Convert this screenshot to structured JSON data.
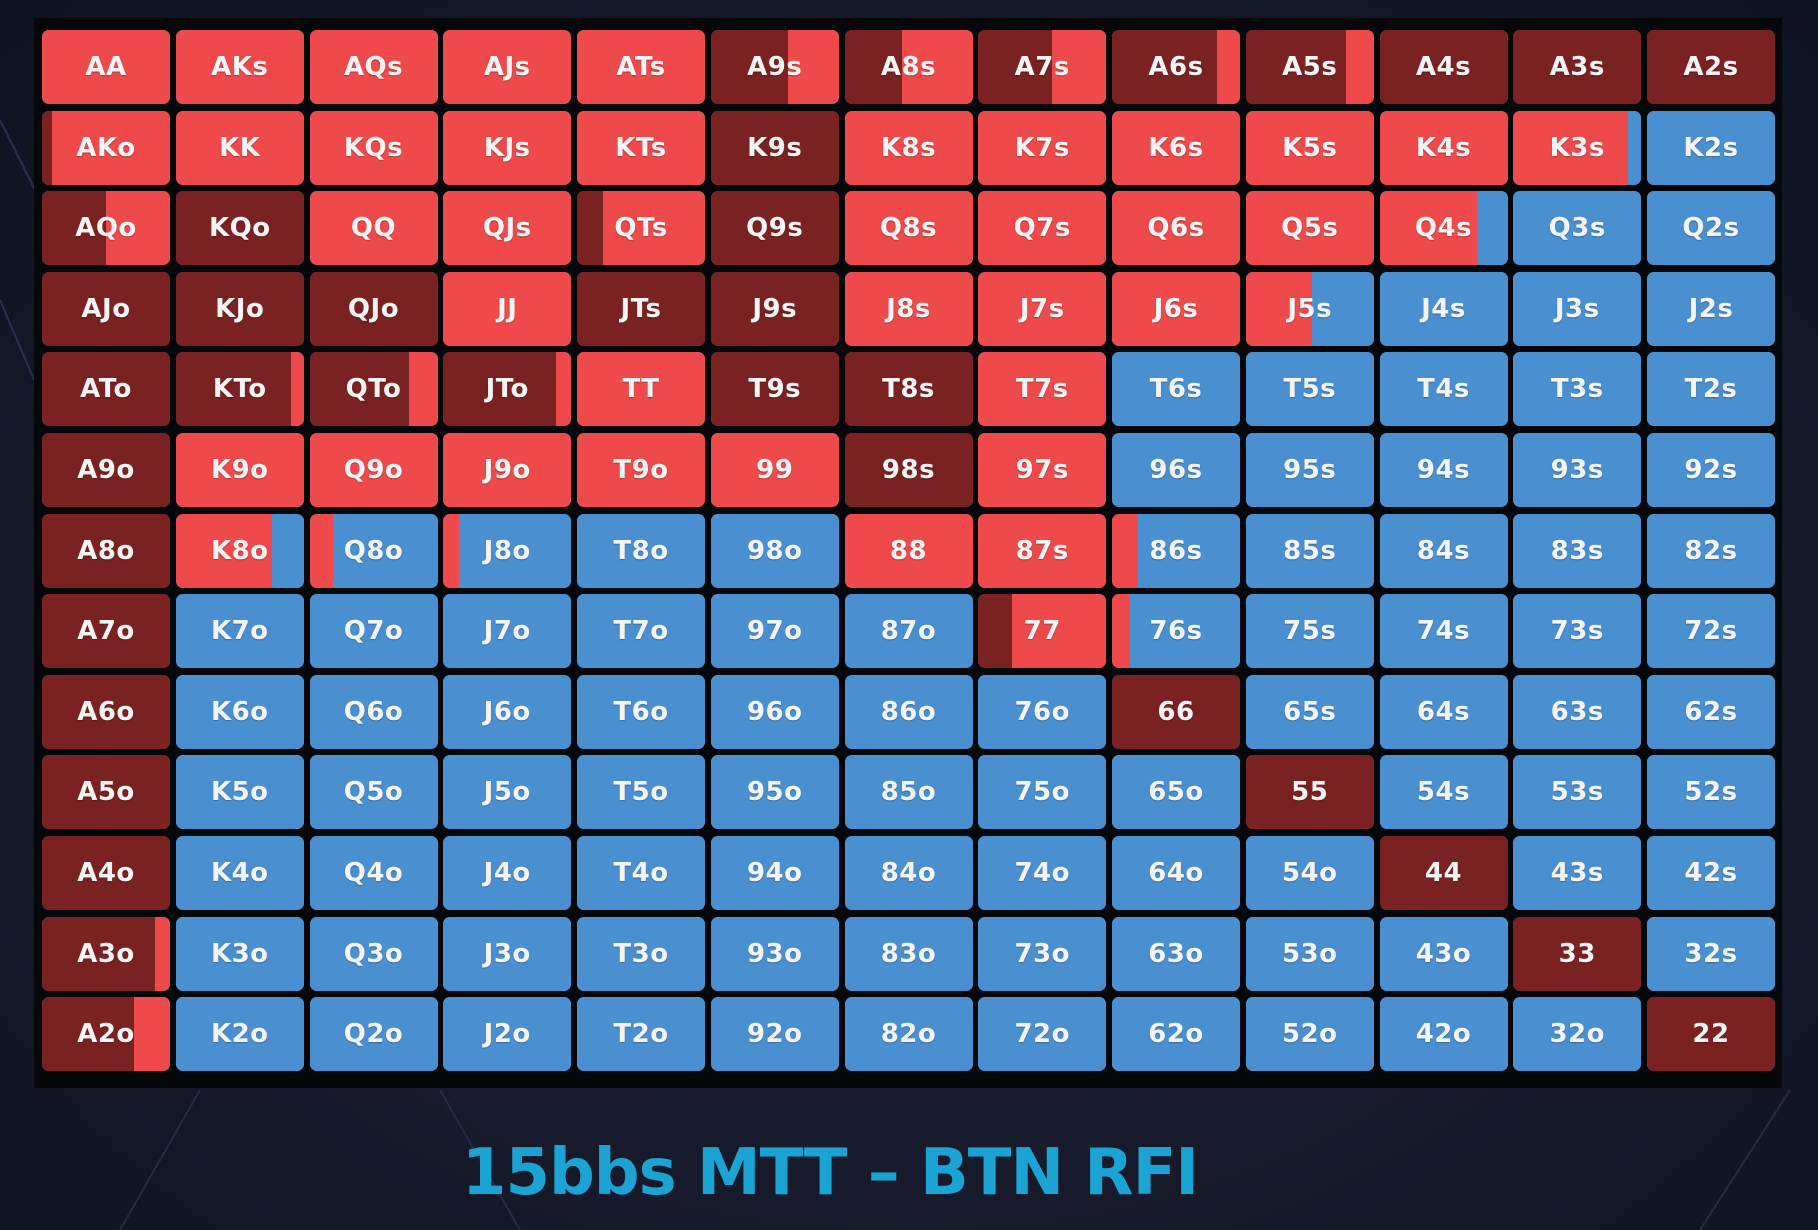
{
  "title": "15bbs MTT – BTN RFI",
  "colors": {
    "raise": "#ee4a4b",
    "allin": "#7a2222",
    "fold": "#4a8fd0",
    "text": "#f4f4f4",
    "title": "#1aa3d3"
  },
  "chart_data": {
    "type": "heatmap",
    "ranks": [
      "A",
      "K",
      "Q",
      "J",
      "T",
      "9",
      "8",
      "7",
      "6",
      "5",
      "4",
      "3",
      "2"
    ],
    "legend": [],
    "rows": [
      [
        "AA",
        "AKs",
        "AQs",
        "AJs",
        "ATs",
        "A9s",
        "A8s",
        "A7s",
        "A6s",
        "A5s",
        "A4s",
        "A3s",
        "A2s"
      ],
      [
        "AKo",
        "KK",
        "KQs",
        "KJs",
        "KTs",
        "K9s",
        "K8s",
        "K7s",
        "K6s",
        "K5s",
        "K4s",
        "K3s",
        "K2s"
      ],
      [
        "AQo",
        "KQo",
        "QQ",
        "QJs",
        "QTs",
        "Q9s",
        "Q8s",
        "Q7s",
        "Q6s",
        "Q5s",
        "Q4s",
        "Q3s",
        "Q2s"
      ],
      [
        "AJo",
        "KJo",
        "QJo",
        "JJ",
        "JTs",
        "J9s",
        "J8s",
        "J7s",
        "J6s",
        "J5s",
        "J4s",
        "J3s",
        "J2s"
      ],
      [
        "ATo",
        "KTo",
        "QTo",
        "JTo",
        "TT",
        "T9s",
        "T8s",
        "T7s",
        "T6s",
        "T5s",
        "T4s",
        "T3s",
        "T2s"
      ],
      [
        "A9o",
        "K9o",
        "Q9o",
        "J9o",
        "T9o",
        "99",
        "98s",
        "97s",
        "96s",
        "95s",
        "94s",
        "93s",
        "92s"
      ],
      [
        "A8o",
        "K8o",
        "Q8o",
        "J8o",
        "T8o",
        "98o",
        "88",
        "87s",
        "86s",
        "85s",
        "84s",
        "83s",
        "82s"
      ],
      [
        "A7o",
        "K7o",
        "Q7o",
        "J7o",
        "T7o",
        "97o",
        "87o",
        "77",
        "76s",
        "75s",
        "74s",
        "73s",
        "72s"
      ],
      [
        "A6o",
        "K6o",
        "Q6o",
        "J6o",
        "T6o",
        "96o",
        "86o",
        "76o",
        "66",
        "65s",
        "64s",
        "63s",
        "62s"
      ],
      [
        "A5o",
        "K5o",
        "Q5o",
        "J5o",
        "T5o",
        "95o",
        "85o",
        "75o",
        "65o",
        "55",
        "54s",
        "53s",
        "52s"
      ],
      [
        "A4o",
        "K4o",
        "Q4o",
        "J4o",
        "T4o",
        "94o",
        "84o",
        "74o",
        "64o",
        "54o",
        "44",
        "43s",
        "42s"
      ],
      [
        "A3o",
        "K3o",
        "Q3o",
        "J3o",
        "T3o",
        "93o",
        "83o",
        "73o",
        "63o",
        "53o",
        "43o",
        "33",
        "32s"
      ],
      [
        "A2o",
        "K2o",
        "Q2o",
        "J2o",
        "T2o",
        "92o",
        "82o",
        "72o",
        "62o",
        "52o",
        "42o",
        "32o",
        "22"
      ]
    ],
    "frequencies": [
      [
        {
          "allin": 0,
          "raise": 1,
          "fold": 0
        },
        {
          "allin": 0,
          "raise": 1,
          "fold": 0
        },
        {
          "allin": 0,
          "raise": 1,
          "fold": 0
        },
        {
          "allin": 0,
          "raise": 1,
          "fold": 0
        },
        {
          "allin": 0,
          "raise": 1,
          "fold": 0
        },
        {
          "allin": 0.6,
          "raise": 0.4,
          "fold": 0
        },
        {
          "allin": 0.45,
          "raise": 0.55,
          "fold": 0
        },
        {
          "allin": 0.58,
          "raise": 0.42,
          "fold": 0
        },
        {
          "allin": 0.82,
          "raise": 0.18,
          "fold": 0
        },
        {
          "allin": 0.78,
          "raise": 0.22,
          "fold": 0
        },
        {
          "allin": 1,
          "raise": 0,
          "fold": 0
        },
        {
          "allin": 1,
          "raise": 0,
          "fold": 0
        },
        {
          "allin": 1,
          "raise": 0,
          "fold": 0
        }
      ],
      [
        {
          "allin": 0.08,
          "raise": 0.92,
          "fold": 0
        },
        {
          "allin": 0,
          "raise": 1,
          "fold": 0
        },
        {
          "allin": 0,
          "raise": 1,
          "fold": 0
        },
        {
          "allin": 0,
          "raise": 1,
          "fold": 0
        },
        {
          "allin": 0,
          "raise": 1,
          "fold": 0
        },
        {
          "allin": 1,
          "raise": 0,
          "fold": 0
        },
        {
          "allin": 0,
          "raise": 1,
          "fold": 0
        },
        {
          "allin": 0,
          "raise": 1,
          "fold": 0
        },
        {
          "allin": 0,
          "raise": 1,
          "fold": 0
        },
        {
          "allin": 0,
          "raise": 1,
          "fold": 0
        },
        {
          "allin": 0,
          "raise": 1,
          "fold": 0
        },
        {
          "allin": 0,
          "raise": 0.9,
          "fold": 0.1
        },
        {
          "allin": 0,
          "raise": 0,
          "fold": 1
        }
      ],
      [
        {
          "allin": 0.5,
          "raise": 0.5,
          "fold": 0
        },
        {
          "allin": 1,
          "raise": 0,
          "fold": 0
        },
        {
          "allin": 0,
          "raise": 1,
          "fold": 0
        },
        {
          "allin": 0,
          "raise": 1,
          "fold": 0
        },
        {
          "allin": 0.2,
          "raise": 0.8,
          "fold": 0
        },
        {
          "allin": 1,
          "raise": 0,
          "fold": 0
        },
        {
          "allin": 0,
          "raise": 1,
          "fold": 0
        },
        {
          "allin": 0,
          "raise": 1,
          "fold": 0
        },
        {
          "allin": 0,
          "raise": 1,
          "fold": 0
        },
        {
          "allin": 0,
          "raise": 1,
          "fold": 0
        },
        {
          "allin": 0,
          "raise": 0.76,
          "fold": 0.24
        },
        {
          "allin": 0,
          "raise": 0,
          "fold": 1
        },
        {
          "allin": 0,
          "raise": 0,
          "fold": 1
        }
      ],
      [
        {
          "allin": 1,
          "raise": 0,
          "fold": 0
        },
        {
          "allin": 1,
          "raise": 0,
          "fold": 0
        },
        {
          "allin": 1,
          "raise": 0,
          "fold": 0
        },
        {
          "allin": 0,
          "raise": 1,
          "fold": 0
        },
        {
          "allin": 1,
          "raise": 0,
          "fold": 0
        },
        {
          "allin": 1,
          "raise": 0,
          "fold": 0
        },
        {
          "allin": 0,
          "raise": 1,
          "fold": 0
        },
        {
          "allin": 0,
          "raise": 1,
          "fold": 0
        },
        {
          "allin": 0,
          "raise": 1,
          "fold": 0
        },
        {
          "allin": 0,
          "raise": 0.52,
          "fold": 0.48
        },
        {
          "allin": 0,
          "raise": 0,
          "fold": 1
        },
        {
          "allin": 0,
          "raise": 0,
          "fold": 1
        },
        {
          "allin": 0,
          "raise": 0,
          "fold": 1
        }
      ],
      [
        {
          "allin": 1,
          "raise": 0,
          "fold": 0
        },
        {
          "allin": 0.9,
          "raise": 0.1,
          "fold": 0
        },
        {
          "allin": 0.78,
          "raise": 0.22,
          "fold": 0
        },
        {
          "allin": 0.88,
          "raise": 0.12,
          "fold": 0
        },
        {
          "allin": 0,
          "raise": 1,
          "fold": 0
        },
        {
          "allin": 1,
          "raise": 0,
          "fold": 0
        },
        {
          "allin": 1,
          "raise": 0,
          "fold": 0
        },
        {
          "allin": 0,
          "raise": 1,
          "fold": 0
        },
        {
          "allin": 0,
          "raise": 0,
          "fold": 1
        },
        {
          "allin": 0,
          "raise": 0,
          "fold": 1
        },
        {
          "allin": 0,
          "raise": 0,
          "fold": 1
        },
        {
          "allin": 0,
          "raise": 0,
          "fold": 1
        },
        {
          "allin": 0,
          "raise": 0,
          "fold": 1
        }
      ],
      [
        {
          "allin": 1,
          "raise": 0,
          "fold": 0
        },
        {
          "allin": 0,
          "raise": 1,
          "fold": 0
        },
        {
          "allin": 0,
          "raise": 1,
          "fold": 0
        },
        {
          "allin": 0,
          "raise": 1,
          "fold": 0
        },
        {
          "allin": 0,
          "raise": 1,
          "fold": 0
        },
        {
          "allin": 0,
          "raise": 1,
          "fold": 0
        },
        {
          "allin": 1,
          "raise": 0,
          "fold": 0
        },
        {
          "allin": 0,
          "raise": 1,
          "fold": 0
        },
        {
          "allin": 0,
          "raise": 0,
          "fold": 1
        },
        {
          "allin": 0,
          "raise": 0,
          "fold": 1
        },
        {
          "allin": 0,
          "raise": 0,
          "fold": 1
        },
        {
          "allin": 0,
          "raise": 0,
          "fold": 1
        },
        {
          "allin": 0,
          "raise": 0,
          "fold": 1
        }
      ],
      [
        {
          "allin": 1,
          "raise": 0,
          "fold": 0
        },
        {
          "allin": 0,
          "raise": 0.75,
          "fold": 0.25
        },
        {
          "allin": 0,
          "raise": 0.18,
          "fold": 0.82
        },
        {
          "allin": 0,
          "raise": 0.12,
          "fold": 0.88
        },
        {
          "allin": 0,
          "raise": 0,
          "fold": 1
        },
        {
          "allin": 0,
          "raise": 0,
          "fold": 1
        },
        {
          "allin": 0,
          "raise": 1,
          "fold": 0
        },
        {
          "allin": 0,
          "raise": 1,
          "fold": 0
        },
        {
          "allin": 0,
          "raise": 0.2,
          "fold": 0.8
        },
        {
          "allin": 0,
          "raise": 0,
          "fold": 1
        },
        {
          "allin": 0,
          "raise": 0,
          "fold": 1
        },
        {
          "allin": 0,
          "raise": 0,
          "fold": 1
        },
        {
          "allin": 0,
          "raise": 0,
          "fold": 1
        }
      ],
      [
        {
          "allin": 1,
          "raise": 0,
          "fold": 0
        },
        {
          "allin": 0,
          "raise": 0,
          "fold": 1
        },
        {
          "allin": 0,
          "raise": 0,
          "fold": 1
        },
        {
          "allin": 0,
          "raise": 0,
          "fold": 1
        },
        {
          "allin": 0,
          "raise": 0,
          "fold": 1
        },
        {
          "allin": 0,
          "raise": 0,
          "fold": 1
        },
        {
          "allin": 0,
          "raise": 0,
          "fold": 1
        },
        {
          "allin": 0.26,
          "raise": 0.74,
          "fold": 0
        },
        {
          "allin": 0,
          "raise": 0.14,
          "fold": 0.86
        },
        {
          "allin": 0,
          "raise": 0,
          "fold": 1
        },
        {
          "allin": 0,
          "raise": 0,
          "fold": 1
        },
        {
          "allin": 0,
          "raise": 0,
          "fold": 1
        },
        {
          "allin": 0,
          "raise": 0,
          "fold": 1
        }
      ],
      [
        {
          "allin": 1,
          "raise": 0,
          "fold": 0
        },
        {
          "allin": 0,
          "raise": 0,
          "fold": 1
        },
        {
          "allin": 0,
          "raise": 0,
          "fold": 1
        },
        {
          "allin": 0,
          "raise": 0,
          "fold": 1
        },
        {
          "allin": 0,
          "raise": 0,
          "fold": 1
        },
        {
          "allin": 0,
          "raise": 0,
          "fold": 1
        },
        {
          "allin": 0,
          "raise": 0,
          "fold": 1
        },
        {
          "allin": 0,
          "raise": 0,
          "fold": 1
        },
        {
          "allin": 1,
          "raise": 0,
          "fold": 0
        },
        {
          "allin": 0,
          "raise": 0,
          "fold": 1
        },
        {
          "allin": 0,
          "raise": 0,
          "fold": 1
        },
        {
          "allin": 0,
          "raise": 0,
          "fold": 1
        },
        {
          "allin": 0,
          "raise": 0,
          "fold": 1
        }
      ],
      [
        {
          "allin": 1,
          "raise": 0,
          "fold": 0
        },
        {
          "allin": 0,
          "raise": 0,
          "fold": 1
        },
        {
          "allin": 0,
          "raise": 0,
          "fold": 1
        },
        {
          "allin": 0,
          "raise": 0,
          "fold": 1
        },
        {
          "allin": 0,
          "raise": 0,
          "fold": 1
        },
        {
          "allin": 0,
          "raise": 0,
          "fold": 1
        },
        {
          "allin": 0,
          "raise": 0,
          "fold": 1
        },
        {
          "allin": 0,
          "raise": 0,
          "fold": 1
        },
        {
          "allin": 0,
          "raise": 0,
          "fold": 1
        },
        {
          "allin": 1,
          "raise": 0,
          "fold": 0
        },
        {
          "allin": 0,
          "raise": 0,
          "fold": 1
        },
        {
          "allin": 0,
          "raise": 0,
          "fold": 1
        },
        {
          "allin": 0,
          "raise": 0,
          "fold": 1
        }
      ],
      [
        {
          "allin": 1,
          "raise": 0,
          "fold": 0
        },
        {
          "allin": 0,
          "raise": 0,
          "fold": 1
        },
        {
          "allin": 0,
          "raise": 0,
          "fold": 1
        },
        {
          "allin": 0,
          "raise": 0,
          "fold": 1
        },
        {
          "allin": 0,
          "raise": 0,
          "fold": 1
        },
        {
          "allin": 0,
          "raise": 0,
          "fold": 1
        },
        {
          "allin": 0,
          "raise": 0,
          "fold": 1
        },
        {
          "allin": 0,
          "raise": 0,
          "fold": 1
        },
        {
          "allin": 0,
          "raise": 0,
          "fold": 1
        },
        {
          "allin": 0,
          "raise": 0,
          "fold": 1
        },
        {
          "allin": 1,
          "raise": 0,
          "fold": 0
        },
        {
          "allin": 0,
          "raise": 0,
          "fold": 1
        },
        {
          "allin": 0,
          "raise": 0,
          "fold": 1
        }
      ],
      [
        {
          "allin": 0.88,
          "raise": 0.12,
          "fold": 0
        },
        {
          "allin": 0,
          "raise": 0,
          "fold": 1
        },
        {
          "allin": 0,
          "raise": 0,
          "fold": 1
        },
        {
          "allin": 0,
          "raise": 0,
          "fold": 1
        },
        {
          "allin": 0,
          "raise": 0,
          "fold": 1
        },
        {
          "allin": 0,
          "raise": 0,
          "fold": 1
        },
        {
          "allin": 0,
          "raise": 0,
          "fold": 1
        },
        {
          "allin": 0,
          "raise": 0,
          "fold": 1
        },
        {
          "allin": 0,
          "raise": 0,
          "fold": 1
        },
        {
          "allin": 0,
          "raise": 0,
          "fold": 1
        },
        {
          "allin": 0,
          "raise": 0,
          "fold": 1
        },
        {
          "allin": 1,
          "raise": 0,
          "fold": 0
        },
        {
          "allin": 0,
          "raise": 0,
          "fold": 1
        }
      ],
      [
        {
          "allin": 0.72,
          "raise": 0.28,
          "fold": 0
        },
        {
          "allin": 0,
          "raise": 0,
          "fold": 1
        },
        {
          "allin": 0,
          "raise": 0,
          "fold": 1
        },
        {
          "allin": 0,
          "raise": 0,
          "fold": 1
        },
        {
          "allin": 0,
          "raise": 0,
          "fold": 1
        },
        {
          "allin": 0,
          "raise": 0,
          "fold": 1
        },
        {
          "allin": 0,
          "raise": 0,
          "fold": 1
        },
        {
          "allin": 0,
          "raise": 0,
          "fold": 1
        },
        {
          "allin": 0,
          "raise": 0,
          "fold": 1
        },
        {
          "allin": 0,
          "raise": 0,
          "fold": 1
        },
        {
          "allin": 0,
          "raise": 0,
          "fold": 1
        },
        {
          "allin": 0,
          "raise": 0,
          "fold": 1
        },
        {
          "allin": 1,
          "raise": 0,
          "fold": 0
        }
      ]
    ]
  }
}
